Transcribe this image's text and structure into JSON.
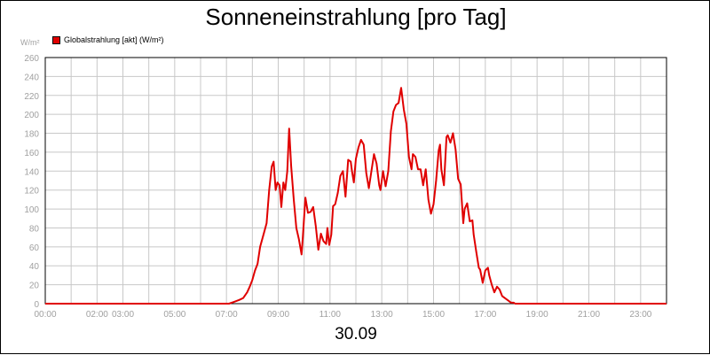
{
  "chart_data": {
    "type": "line",
    "title": "Sonneneinstrahlung [pro Tag]",
    "unit_label": "W/m²",
    "footer_label": "30.09",
    "xlabel": "",
    "ylabel": "",
    "xlim": [
      0,
      24
    ],
    "ylim": [
      0,
      260
    ],
    "grid": true,
    "legend_position": "top-left",
    "y_ticks": [
      "0",
      "20",
      "40",
      "60",
      "80",
      "100",
      "120",
      "140",
      "160",
      "180",
      "200",
      "220",
      "240",
      "260"
    ],
    "x_ticks": [
      {
        "value": 0,
        "label": "00:00"
      },
      {
        "value": 2,
        "label": "02:00"
      },
      {
        "value": 3,
        "label": "03:00"
      },
      {
        "value": 5,
        "label": "05:00"
      },
      {
        "value": 7,
        "label": "07:00"
      },
      {
        "value": 9,
        "label": "09:00"
      },
      {
        "value": 11,
        "label": "11:00"
      },
      {
        "value": 13,
        "label": "13:00"
      },
      {
        "value": 15,
        "label": "15:00"
      },
      {
        "value": 17,
        "label": "17:00"
      },
      {
        "value": 19,
        "label": "19:00"
      },
      {
        "value": 21,
        "label": "21:00"
      },
      {
        "value": 23,
        "label": "23:00"
      }
    ],
    "series": [
      {
        "name": "Globalstrahlung [akt] (W/m²)",
        "color": "#e00000",
        "x": [
          0,
          7.1,
          7.3,
          7.5,
          7.65,
          7.8,
          7.9,
          8.0,
          8.1,
          8.2,
          8.3,
          8.45,
          8.55,
          8.65,
          8.75,
          8.82,
          8.9,
          8.97,
          9.05,
          9.12,
          9.2,
          9.27,
          9.35,
          9.42,
          9.5,
          9.6,
          9.7,
          9.8,
          9.9,
          9.95,
          10.05,
          10.15,
          10.25,
          10.35,
          10.45,
          10.55,
          10.65,
          10.75,
          10.85,
          10.9,
          10.97,
          11.05,
          11.12,
          11.2,
          11.3,
          11.4,
          11.5,
          11.6,
          11.7,
          11.8,
          11.85,
          11.92,
          12.0,
          12.1,
          12.2,
          12.3,
          12.4,
          12.5,
          12.6,
          12.7,
          12.8,
          12.9,
          12.95,
          13.05,
          13.15,
          13.25,
          13.35,
          13.45,
          13.55,
          13.65,
          13.75,
          13.85,
          13.95,
          14.05,
          14.15,
          14.2,
          14.3,
          14.4,
          14.5,
          14.6,
          14.7,
          14.8,
          14.9,
          15.0,
          15.1,
          15.2,
          15.25,
          15.3,
          15.4,
          15.5,
          15.55,
          15.65,
          15.75,
          15.85,
          15.95,
          16.05,
          16.15,
          16.2,
          16.3,
          16.4,
          16.5,
          16.55,
          16.65,
          16.75,
          16.8,
          16.9,
          17.0,
          17.1,
          17.15,
          17.25,
          17.35,
          17.45,
          17.55,
          17.65,
          17.75,
          17.8,
          17.85,
          17.9,
          17.95,
          18.0,
          18.1,
          18.15,
          18.2,
          18.25,
          18.3,
          18.4,
          18.5,
          18.6,
          18.7,
          18.8,
          18.9,
          19.0,
          19.2,
          24.0
        ],
        "values": [
          0,
          0,
          2,
          4,
          6,
          12,
          18,
          25,
          35,
          42,
          60,
          75,
          85,
          120,
          145,
          150,
          120,
          128,
          125,
          102,
          128,
          120,
          140,
          185,
          145,
          110,
          80,
          68,
          52,
          70,
          112,
          96,
          97,
          102,
          82,
          57,
          74,
          66,
          63,
          80,
          62,
          73,
          103,
          105,
          117,
          135,
          140,
          113,
          152,
          150,
          140,
          128,
          153,
          165,
          173,
          168,
          138,
          122,
          140,
          158,
          148,
          125,
          120,
          140,
          124,
          140,
          182,
          203,
          210,
          212,
          228,
          205,
          190,
          155,
          142,
          158,
          155,
          142,
          142,
          125,
          142,
          110,
          95,
          105,
          130,
          162,
          168,
          142,
          125,
          176,
          178,
          170,
          180,
          163,
          132,
          126,
          85,
          100,
          106,
          87,
          88,
          73,
          55,
          38,
          36,
          22,
          35,
          38,
          30,
          20,
          12,
          18,
          15,
          8,
          6,
          5,
          4,
          3,
          2,
          1,
          1,
          0,
          0,
          0,
          0,
          0,
          0,
          0,
          0,
          0,
          0,
          0,
          0,
          0
        ]
      }
    ]
  }
}
